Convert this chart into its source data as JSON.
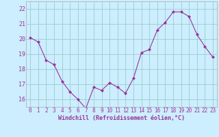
{
  "x": [
    0,
    1,
    2,
    3,
    4,
    5,
    6,
    7,
    8,
    9,
    10,
    11,
    12,
    13,
    14,
    15,
    16,
    17,
    18,
    19,
    20,
    21,
    22,
    23
  ],
  "y": [
    20.1,
    19.8,
    18.6,
    18.3,
    17.2,
    16.5,
    16.0,
    15.4,
    16.8,
    16.6,
    17.1,
    16.8,
    16.4,
    17.4,
    19.1,
    19.3,
    20.6,
    21.1,
    21.8,
    21.8,
    21.5,
    20.3,
    19.5,
    18.8
  ],
  "line_color": "#993399",
  "marker": "D",
  "marker_size": 2,
  "bg_color": "#cceeff",
  "grid_color": "#99cccc",
  "xlabel": "Windchill (Refroidissement éolien,°C)",
  "ylim": [
    15.5,
    22.5
  ],
  "xlim": [
    -0.5,
    23.5
  ],
  "yticks": [
    16,
    17,
    18,
    19,
    20,
    21,
    22
  ],
  "xticks": [
    0,
    1,
    2,
    3,
    4,
    5,
    6,
    7,
    8,
    9,
    10,
    11,
    12,
    13,
    14,
    15,
    16,
    17,
    18,
    19,
    20,
    21,
    22,
    23
  ],
  "tick_color": "#993399",
  "label_color": "#993399",
  "font_family": "monospace",
  "tick_fontsize": 5.5,
  "xlabel_fontsize": 6.0
}
